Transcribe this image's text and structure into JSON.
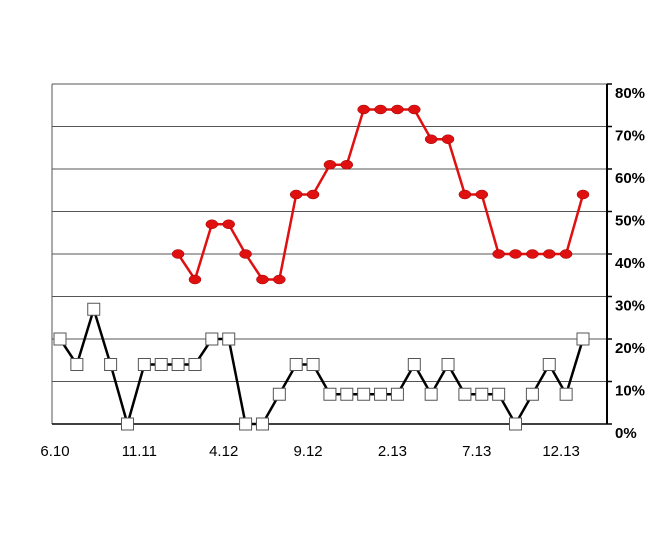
{
  "chart_data": {
    "type": "line",
    "categories": [
      "6.10",
      null,
      null,
      null,
      null,
      "11.11",
      null,
      null,
      null,
      null,
      "4.12",
      null,
      null,
      null,
      null,
      "9.12",
      null,
      null,
      null,
      null,
      "2.13",
      null,
      null,
      null,
      null,
      "7.13",
      null,
      null,
      null,
      null,
      "12.13",
      null
    ],
    "series": [
      {
        "color": "#000000",
        "marker": "square",
        "values": [
          20,
          14,
          27,
          14,
          0,
          14,
          14,
          14,
          14,
          20,
          20,
          0,
          0,
          7,
          14,
          14,
          7,
          7,
          7,
          7,
          7,
          14,
          7,
          14,
          7,
          7,
          7,
          0,
          7,
          14,
          7,
          20
        ]
      },
      {
        "color": "#e01010",
        "marker": "circle",
        "values": [
          null,
          null,
          null,
          null,
          null,
          null,
          null,
          40,
          34,
          47,
          47,
          40,
          34,
          34,
          54,
          54,
          61,
          61,
          74,
          74,
          74,
          74,
          67,
          67,
          54,
          54,
          40,
          40,
          40,
          40,
          40,
          54
        ]
      }
    ],
    "ylim": [
      0,
      80
    ],
    "yticks": [
      {
        "value": 0,
        "label": "0%"
      },
      {
        "value": 10,
        "label": "10%"
      },
      {
        "value": 20,
        "label": "20%"
      },
      {
        "value": 30,
        "label": "30%"
      },
      {
        "value": 40,
        "label": "40%"
      },
      {
        "value": 50,
        "label": "50%"
      },
      {
        "value": 60,
        "label": "60%"
      },
      {
        "value": 70,
        "label": "70%"
      },
      {
        "value": 80,
        "label": "80%"
      }
    ],
    "grid": true
  }
}
